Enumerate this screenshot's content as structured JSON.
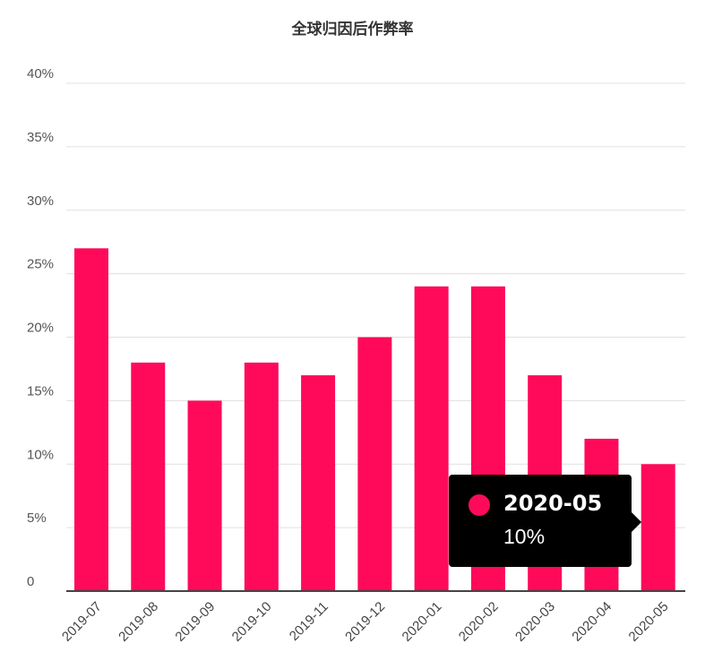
{
  "colors": {
    "bar": "#ff0a5a",
    "grid": "#e0e0e0",
    "axis": "#444444",
    "tooltip_bg": "#000000"
  },
  "tooltip": {
    "category": "2020-05",
    "value_label": "10%"
  },
  "chart_data": {
    "type": "bar",
    "title": "全球归因后作弊率",
    "xlabel": "",
    "ylabel": "",
    "ylim": [
      0,
      40
    ],
    "yticks": [
      0,
      5,
      10,
      15,
      20,
      25,
      30,
      35,
      40
    ],
    "ytick_labels": [
      "0",
      "5%",
      "10%",
      "15%",
      "20%",
      "25%",
      "30%",
      "35%",
      "40%"
    ],
    "grid": true,
    "categories": [
      "2019-07",
      "2019-08",
      "2019-09",
      "2019-10",
      "2019-11",
      "2019-12",
      "2020-01",
      "2020-02",
      "2020-03",
      "2020-04",
      "2020-05"
    ],
    "values": [
      27,
      18,
      15,
      18,
      17,
      20,
      24,
      24,
      17,
      12,
      10
    ]
  }
}
